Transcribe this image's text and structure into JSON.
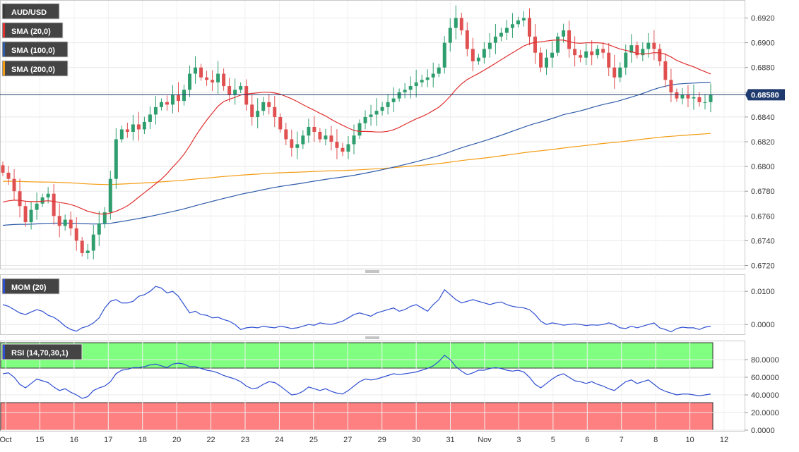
{
  "chart_data": [
    {
      "type": "candlestick",
      "title": "AUD/USD",
      "x_tick_labels": [
        "Oct",
        "15",
        "16",
        "17",
        "18",
        "20",
        "22",
        "23",
        "24",
        "25",
        "27",
        "29",
        "30",
        "31",
        "Nov",
        "3",
        "5",
        "6",
        "7",
        "8",
        "10",
        "12"
      ],
      "y_tick_labels": [
        "0.6920",
        "0.6900",
        "0.6880",
        "0.6860",
        "0.6840",
        "0.6820",
        "0.6800",
        "0.6780",
        "0.6760",
        "0.6740",
        "0.6720"
      ],
      "ylim": [
        0.6718,
        0.693
      ],
      "current_price": "0.68580",
      "current_price_value": 0.6858,
      "grid": true,
      "legend": [
        {
          "name": "AUD/USD",
          "color": "#3a3a3a"
        },
        {
          "name": "SMA (20,0)",
          "color": "#e03030"
        },
        {
          "name": "SMA (100,0)",
          "color": "#2f5ca8"
        },
        {
          "name": "SMA (200,0)",
          "color": "#f39c12"
        }
      ],
      "colors": {
        "up": "#2e9e6e",
        "down": "#e05050",
        "sma20": "#e03030",
        "sma100": "#2f5ca8",
        "sma200": "#f39c12",
        "price_line": "#1f3a6e"
      },
      "closes": [
        0.6795,
        0.679,
        0.678,
        0.6768,
        0.6755,
        0.6765,
        0.677,
        0.6775,
        0.6778,
        0.676,
        0.6752,
        0.6757,
        0.675,
        0.674,
        0.673,
        0.6732,
        0.6745,
        0.6754,
        0.6763,
        0.679,
        0.6822,
        0.683,
        0.6828,
        0.6834,
        0.683,
        0.6836,
        0.6842,
        0.6848,
        0.6852,
        0.685,
        0.6858,
        0.6853,
        0.6862,
        0.6875,
        0.688,
        0.6872,
        0.687,
        0.6868,
        0.6875,
        0.6865,
        0.6858,
        0.6862,
        0.6865,
        0.685,
        0.684,
        0.6845,
        0.6852,
        0.6848,
        0.684,
        0.683,
        0.6822,
        0.6815,
        0.6818,
        0.6825,
        0.6832,
        0.6828,
        0.6822,
        0.6825,
        0.682,
        0.6815,
        0.6812,
        0.6818,
        0.6825,
        0.6835,
        0.684,
        0.6842,
        0.6845,
        0.6848,
        0.6852,
        0.6855,
        0.686,
        0.6862,
        0.6865,
        0.6868,
        0.687,
        0.6872,
        0.6875,
        0.688,
        0.69,
        0.6912,
        0.692,
        0.691,
        0.6895,
        0.6885,
        0.6888,
        0.6895,
        0.69,
        0.6905,
        0.6908,
        0.6912,
        0.6915,
        0.6918,
        0.692,
        0.6905,
        0.6892,
        0.688,
        0.6888,
        0.6892,
        0.6905,
        0.691,
        0.6895,
        0.689,
        0.6888,
        0.6893,
        0.689,
        0.6895,
        0.6892,
        0.688,
        0.6872,
        0.688,
        0.6892,
        0.6898,
        0.689,
        0.6895,
        0.69,
        0.6895,
        0.6885,
        0.687,
        0.686,
        0.6855,
        0.6858,
        0.6855,
        0.6856,
        0.6852,
        0.6852,
        0.6858
      ]
    },
    {
      "type": "line",
      "title": "MOM (20)",
      "y_tick_labels": [
        "0.0100",
        "0.0000"
      ],
      "ylim": [
        -0.0025,
        0.0145
      ],
      "series": [
        {
          "name": "MOM (20)",
          "color": "#2f4fd1",
          "values": [
            0.006,
            0.0055,
            0.0045,
            0.0035,
            0.003,
            0.0038,
            0.0045,
            0.004,
            0.0028,
            0.0022,
            0.001,
            -0.0005,
            -0.0015,
            -0.002,
            -0.001,
            -0.0005,
            0.0005,
            0.002,
            0.005,
            0.007,
            0.0075,
            0.0065,
            0.0065,
            0.007,
            0.0085,
            0.009,
            0.01,
            0.0115,
            0.011,
            0.0095,
            0.01,
            0.0085,
            0.006,
            0.0035,
            0.004,
            0.003,
            0.0028,
            0.002,
            0.0022,
            0.0015,
            0.001,
            0.0,
            -0.0015,
            -0.001,
            -0.0008,
            -0.001,
            -0.0005,
            -0.0008,
            -0.001,
            -0.0005,
            -0.0008,
            -0.0012,
            -0.001,
            -0.0005,
            0.0,
            -0.0002,
            0.0005,
            0.0002,
            0.0,
            0.0005,
            0.001,
            0.002,
            0.003,
            0.0035,
            0.003,
            0.0025,
            0.0035,
            0.004,
            0.0045,
            0.005,
            0.004,
            0.0045,
            0.0055,
            0.006,
            0.005,
            0.004,
            0.006,
            0.0075,
            0.0105,
            0.009,
            0.0075,
            0.0065,
            0.007,
            0.0075,
            0.007,
            0.0065,
            0.006,
            0.0065,
            0.0068,
            0.006,
            0.0055,
            0.0052,
            0.005,
            0.0045,
            0.003,
            0.001,
            0.0,
            0.0005,
            0.0002,
            -0.0002,
            0.0,
            0.0002,
            0.0,
            -0.0003,
            -0.0001,
            -0.0002,
            0.0,
            0.0005,
            0.0,
            -0.001,
            -0.0012,
            -0.0005,
            -0.001,
            -0.0005,
            0.0,
            0.0005,
            -0.001,
            -0.0015,
            -0.0022,
            -0.0012,
            -0.0008,
            -0.001,
            -0.001,
            -0.0015,
            -0.0008,
            -0.0005
          ]
        }
      ]
    },
    {
      "type": "line",
      "title": "RSI (14,70,30,1)",
      "y_tick_labels": [
        "80.0000",
        "60.0000",
        "40.0000",
        "20.0000",
        "0.0000"
      ],
      "ylim": [
        0,
        100
      ],
      "overbought": 70,
      "oversold": 30,
      "zone_colors": {
        "overbought": "#80ff80",
        "oversold": "#ff8080"
      },
      "series": [
        {
          "name": "RSI (14,70,30,1)",
          "color": "#2f4fd1",
          "values": [
            64,
            65,
            60,
            52,
            48,
            53,
            58,
            56,
            54,
            49,
            45,
            47,
            43,
            40,
            36,
            38,
            45,
            48,
            50,
            55,
            64,
            68,
            69,
            71,
            71,
            72,
            74,
            75,
            73,
            71,
            75,
            76,
            75,
            72,
            72,
            70,
            68,
            67,
            65,
            62,
            60,
            58,
            55,
            50,
            47,
            48,
            52,
            55,
            54,
            50,
            45,
            40,
            41,
            44,
            49,
            47,
            45,
            47,
            44,
            42,
            41,
            45,
            50,
            55,
            58,
            57,
            58,
            60,
            62,
            64,
            63,
            64,
            65,
            66,
            68,
            70,
            73,
            78,
            85,
            80,
            72,
            67,
            63,
            65,
            68,
            68,
            70,
            71,
            70,
            68,
            67,
            68,
            66,
            60,
            52,
            48,
            53,
            58,
            62,
            64,
            60,
            56,
            55,
            53,
            55,
            52,
            50,
            47,
            45,
            50,
            55,
            57,
            53,
            55,
            57,
            52,
            47,
            44,
            42,
            40,
            41,
            41,
            40,
            39,
            40,
            41
          ]
        }
      ]
    }
  ]
}
